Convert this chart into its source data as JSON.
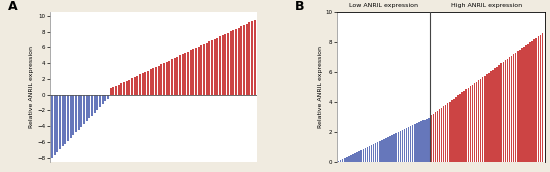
{
  "panel_A": {
    "n_blue": 22,
    "n_red": 55,
    "blue_min": -8.0,
    "blue_max": -0.5,
    "red_min": 0.8,
    "red_max": 9.5,
    "ylim": [
      -8.5,
      10.5
    ],
    "yticks": [
      -8.0,
      -6.0,
      -4.0,
      -2.0,
      0.0,
      2.0,
      4.0,
      6.0,
      8.0,
      10.0
    ],
    "ylabel": "Relative ANRIL expression",
    "label": "A",
    "blue_color": "#6677bb",
    "red_color": "#cc4444",
    "bar_width": 0.75
  },
  "panel_B": {
    "n_blue": 45,
    "n_red": 55,
    "blue_min": 0.05,
    "blue_max": 2.95,
    "red_min": 3.1,
    "red_max": 8.6,
    "ylim": [
      0,
      10
    ],
    "yticks": [
      0,
      2,
      4,
      6,
      8,
      10
    ],
    "ylabel": "Relative ANRIL expression",
    "label": "B",
    "blue_color": "#6677bb",
    "red_color": "#cc4444",
    "low_label": "Low ANRIL expression",
    "high_label": "High ANRIL expression",
    "bar_width": 0.75
  },
  "background_color": "#f0ebe0"
}
